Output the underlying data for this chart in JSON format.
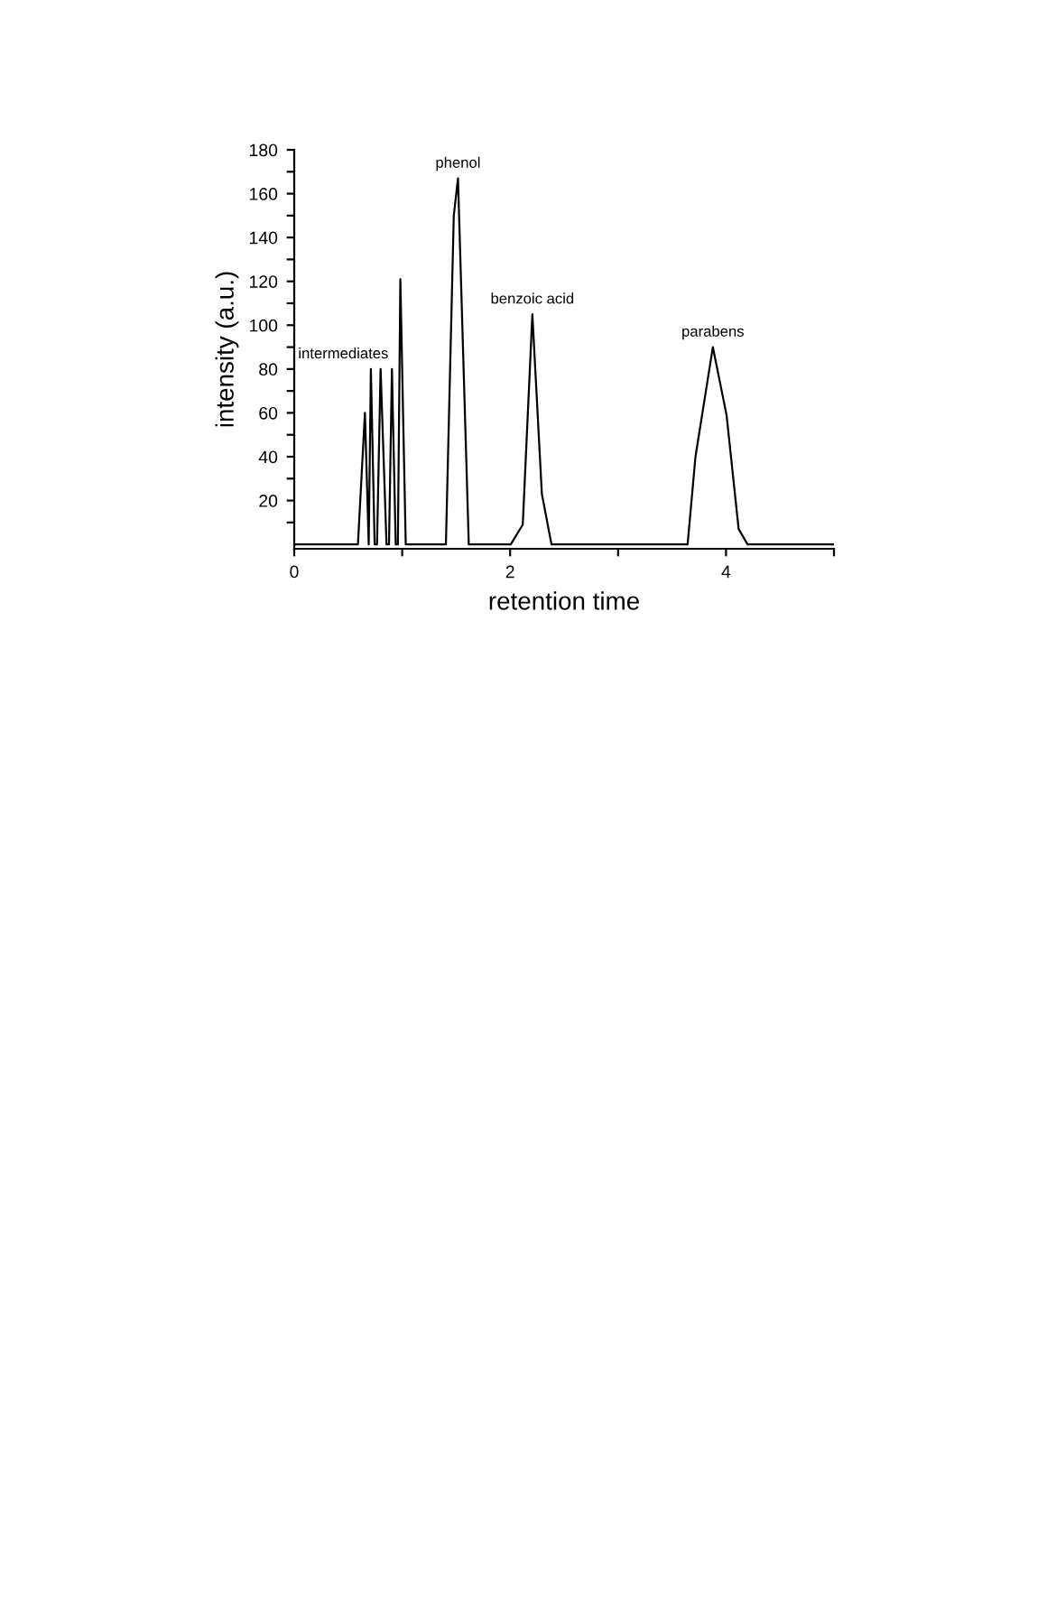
{
  "chart_data": {
    "type": "line",
    "xlabel": "retention time",
    "ylabel": "intensity (a.u.)",
    "xlim": [
      0,
      5
    ],
    "ylim": [
      -2,
      180
    ],
    "xticks": [
      0,
      {
        "value": 1,
        "label": null
      },
      2,
      {
        "value": 3,
        "label": null
      },
      4,
      {
        "value": 5,
        "label": null
      }
    ],
    "yticks": [
      {
        "value": 10,
        "label": null
      },
      20,
      {
        "value": 30,
        "label": null
      },
      40,
      {
        "value": 50,
        "label": null
      },
      60,
      {
        "value": 70,
        "label": null
      },
      80,
      {
        "value": 90,
        "label": null
      },
      100,
      {
        "value": 110,
        "label": null
      },
      120,
      {
        "value": 130,
        "label": null
      },
      140,
      {
        "value": 150,
        "label": null
      },
      160,
      {
        "value": 170,
        "label": null
      },
      180
    ],
    "series": [
      {
        "color": "#000000",
        "x": [
          0,
          0.59,
          0.655,
          0.69,
          0.71,
          0.745,
          0.767,
          0.8,
          0.855,
          0.878,
          0.905,
          0.94,
          0.96,
          0.983,
          1.033,
          1.405,
          1.478,
          1.517,
          1.617,
          2.006,
          2.117,
          2.206,
          2.294,
          2.383,
          3.644,
          3.717,
          3.878,
          4.005,
          4.117,
          4.2,
          5
        ],
        "values": [
          0,
          0,
          60,
          0,
          80,
          0,
          0,
          80,
          0,
          0,
          80,
          0,
          0,
          121,
          0,
          0,
          150,
          167,
          0,
          0,
          9,
          105,
          23,
          0,
          0,
          40,
          90,
          59,
          7,
          0,
          0
        ]
      }
    ],
    "annotations": [
      {
        "text": "intermediates",
        "x": 0.71,
        "y": 80
      },
      {
        "text": "phenol",
        "x": 1.517,
        "y": 167
      },
      {
        "text": "benzoic acid",
        "x": 2.206,
        "y": 105
      },
      {
        "text": "parabens",
        "x": 3.878,
        "y": 90
      }
    ],
    "grid": false,
    "legend": false,
    "marker": "none",
    "line_style": "solid"
  }
}
